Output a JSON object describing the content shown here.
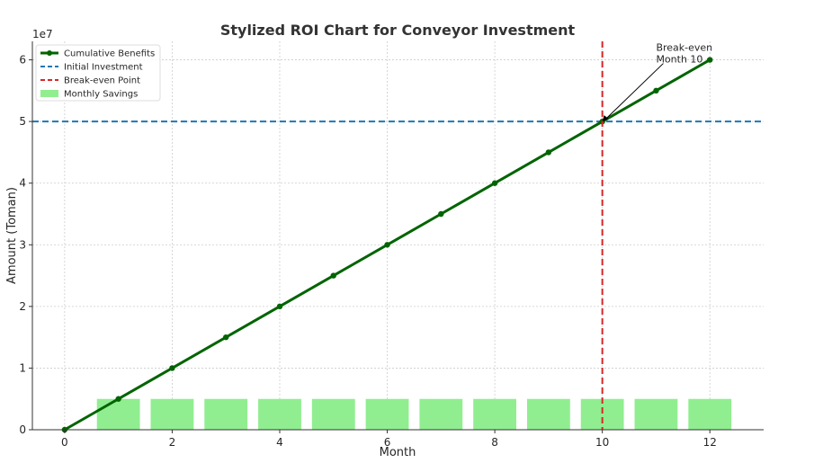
{
  "chart_data": {
    "type": "line",
    "title": "Stylized ROI Chart for Conveyor Investment",
    "xlabel": "Month",
    "ylabel": "Amount (Toman)",
    "y_offset_label": "1e7",
    "xlim": [
      -0.6,
      13.0
    ],
    "ylim": [
      0,
      6.3
    ],
    "x_ticks": [
      0,
      2,
      4,
      6,
      8,
      10,
      12
    ],
    "x_tick_labels": [
      "0",
      "2",
      "4",
      "6",
      "8",
      "10",
      "12"
    ],
    "y_ticks": [
      0,
      1,
      2,
      3,
      4,
      5,
      6
    ],
    "y_tick_labels": [
      "0",
      "1",
      "2",
      "3",
      "4",
      "5",
      "6"
    ],
    "grid": true,
    "legend_position": "upper-left",
    "series": [
      {
        "name": "Cumulative Benefits",
        "kind": "line",
        "color": "#006400",
        "x": [
          0,
          1,
          2,
          3,
          4,
          5,
          6,
          7,
          8,
          9,
          10,
          11,
          12
        ],
        "y": [
          0,
          0.5,
          1.0,
          1.5,
          2.0,
          2.5,
          3.0,
          3.5,
          4.0,
          4.5,
          5.0,
          5.5,
          6.0
        ]
      },
      {
        "name": "Initial Investment",
        "kind": "hline",
        "color": "#1f77b4",
        "y": 5.0
      },
      {
        "name": "Break-even Point",
        "kind": "vline",
        "color": "#d62728",
        "x": 10
      },
      {
        "name": "Monthly Savings",
        "kind": "bar",
        "color": "#90ee90",
        "x": [
          1,
          2,
          3,
          4,
          5,
          6,
          7,
          8,
          9,
          10,
          11,
          12
        ],
        "y": [
          0.5,
          0.5,
          0.5,
          0.5,
          0.5,
          0.5,
          0.5,
          0.5,
          0.5,
          0.5,
          0.5,
          0.5
        ]
      }
    ],
    "annotation": {
      "lines": [
        "Break-even",
        "Month 10"
      ],
      "point": [
        10,
        5.0
      ],
      "text_at": [
        11,
        6.0
      ]
    }
  }
}
